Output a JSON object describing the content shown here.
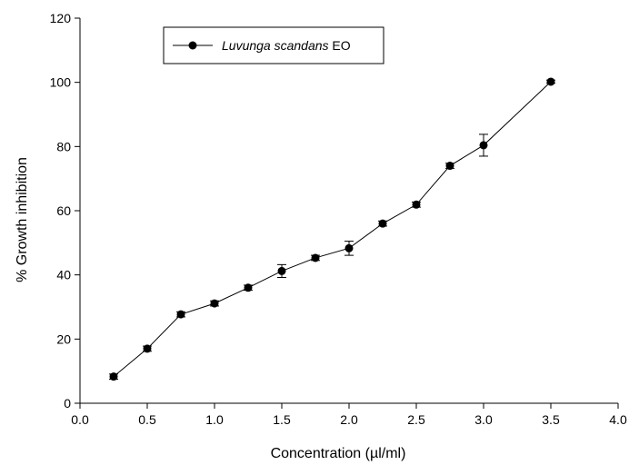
{
  "chart_data": {
    "type": "line",
    "title": "",
    "xlabel": "Concentration (µl/ml)",
    "ylabel": "% Growth inhibition",
    "xlim": [
      0.0,
      4.0
    ],
    "ylim": [
      0,
      120
    ],
    "x_ticks": [
      "0.0",
      "0.5",
      "1.0",
      "1.5",
      "2.0",
      "2.5",
      "3.0",
      "3.5",
      "4.0"
    ],
    "y_ticks": [
      "0",
      "20",
      "40",
      "60",
      "80",
      "100",
      "120"
    ],
    "legend_position": "top-left",
    "grid": false,
    "series": [
      {
        "name": "Luvunga scandans EO",
        "name_italic": "Luvunga scandans",
        "name_suffix": " EO",
        "color": "#000000",
        "marker": "filled-circle",
        "x": [
          0.25,
          0.5,
          0.75,
          1.0,
          1.25,
          1.5,
          1.75,
          2.0,
          2.25,
          2.5,
          2.75,
          3.0,
          3.5
        ],
        "y": [
          8.3,
          17.0,
          27.7,
          31.1,
          36.0,
          41.2,
          45.3,
          48.3,
          56.0,
          61.9,
          74.0,
          80.4,
          100.2
        ],
        "error": [
          0.8,
          0.8,
          0.8,
          0.8,
          0.8,
          2.0,
          0.8,
          2.2,
          0.8,
          0.8,
          0.8,
          3.4,
          0.5
        ]
      }
    ]
  }
}
